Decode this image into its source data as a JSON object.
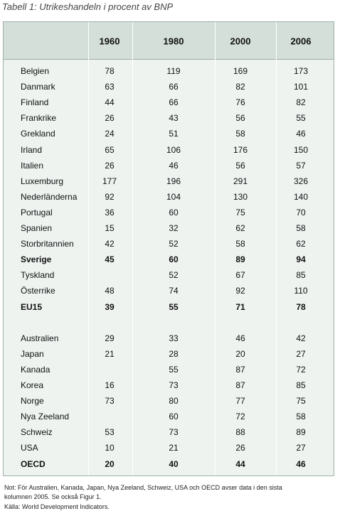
{
  "title": "Tabell 1: Utrikeshandeln i procent av BNP",
  "table": {
    "columns": [
      "1960",
      "1980",
      "2000",
      "2006"
    ],
    "groups": [
      [
        {
          "label": "Belgien",
          "values": [
            78,
            119,
            169,
            173
          ]
        },
        {
          "label": "Danmark",
          "values": [
            63,
            66,
            82,
            101
          ]
        },
        {
          "label": "Finland",
          "values": [
            44,
            66,
            76,
            82
          ]
        },
        {
          "label": "Frankrike",
          "values": [
            26,
            43,
            56,
            55
          ]
        },
        {
          "label": "Grekland",
          "values": [
            24,
            51,
            58,
            46
          ]
        },
        {
          "label": "Irland",
          "values": [
            65,
            106,
            176,
            150
          ]
        },
        {
          "label": "Italien",
          "values": [
            26,
            46,
            56,
            57
          ]
        },
        {
          "label": "Luxemburg",
          "values": [
            177,
            196,
            291,
            326
          ]
        },
        {
          "label": "Nederländerna",
          "values": [
            92,
            104,
            130,
            140
          ]
        },
        {
          "label": "Portugal",
          "values": [
            36,
            60,
            75,
            70
          ]
        },
        {
          "label": "Spanien",
          "values": [
            15,
            32,
            62,
            58
          ]
        },
        {
          "label": "Storbritannien",
          "values": [
            42,
            52,
            58,
            62
          ]
        },
        {
          "label": "Sverige",
          "values": [
            45,
            60,
            89,
            94
          ],
          "bold": true
        },
        {
          "label": "Tyskland",
          "values": [
            null,
            52,
            67,
            85
          ]
        },
        {
          "label": "Österrike",
          "values": [
            48,
            74,
            92,
            110
          ]
        },
        {
          "label": "EU15",
          "values": [
            39,
            55,
            71,
            78
          ],
          "bold": true
        }
      ],
      [
        {
          "label": "Australien",
          "values": [
            29,
            33,
            46,
            42
          ]
        },
        {
          "label": "Japan",
          "values": [
            21,
            28,
            20,
            27
          ]
        },
        {
          "label": "Kanada",
          "values": [
            null,
            55,
            87,
            72
          ]
        },
        {
          "label": "Korea",
          "values": [
            16,
            73,
            87,
            85
          ]
        },
        {
          "label": "Norge",
          "values": [
            73,
            80,
            77,
            75
          ]
        },
        {
          "label": "Nya Zeeland",
          "values": [
            null,
            60,
            72,
            58
          ]
        },
        {
          "label": "Schweiz",
          "values": [
            53,
            73,
            88,
            89
          ]
        },
        {
          "label": "USA",
          "values": [
            10,
            21,
            26,
            27
          ]
        },
        {
          "label": "OECD",
          "values": [
            20,
            40,
            44,
            46
          ],
          "bold": true
        }
      ]
    ]
  },
  "notes": [
    "Not: För Australien, Kanada, Japan, Nya Zeeland, Schweiz, USA och OECD avser data i den sista",
    "kolumnen 2005. Se också Figur 1.",
    "Källa: World Development Indicators."
  ]
}
